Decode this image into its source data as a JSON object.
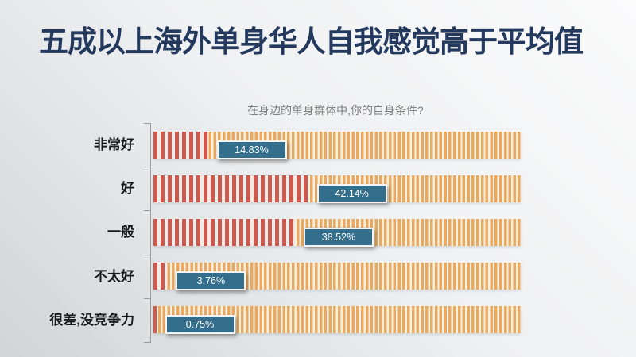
{
  "slide": {
    "title": "五成以上海外单身华人自我感觉高于平均值"
  },
  "chart_data": {
    "type": "bar",
    "orientation": "horizontal",
    "title": "在身边的单身群体中,你的自身条件?",
    "categories": [
      "非常好",
      "好",
      "一般",
      "不太好",
      "很差,没竞争力"
    ],
    "values": [
      14.83,
      42.14,
      38.52,
      3.76,
      0.75
    ],
    "value_labels": [
      "14.83%",
      "42.14%",
      "38.52%",
      "3.76%",
      "0.75%"
    ],
    "unit": "percent",
    "xlim": [
      0,
      100
    ],
    "grid": "off",
    "legend": "none",
    "axis": "left vertical axis with category ticks"
  },
  "colors": {
    "slide_title": "#24395e",
    "chart_title": "#7f7f7f",
    "category_label": "#1a1a1a",
    "value_stripe": "#cc5a4f",
    "value_stripe_gap": "#f1ebe9",
    "track_stripe": "#e8a963",
    "track_stripe_gap": "#f8f1e2",
    "badge_bg": "#336f8c",
    "badge_border": "#f5f4f2",
    "badge_text": "#ffffff",
    "axis": "#9aa0a3"
  }
}
